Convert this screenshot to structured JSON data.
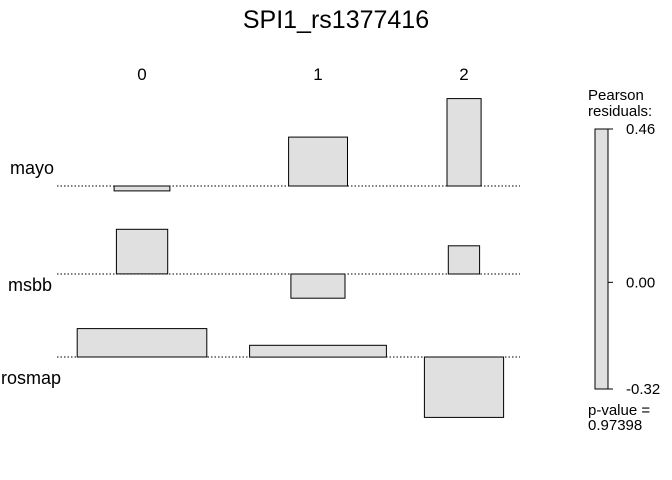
{
  "chart_data": {
    "type": "association",
    "title": "SPI1_rs1377416",
    "columns": [
      "0",
      "1",
      "2"
    ],
    "rows": [
      "mayo",
      "msbb",
      "rosmap"
    ],
    "column_widths": [
      0.45,
      0.475,
      0.275
    ],
    "row_heights": [
      0.37,
      0.34,
      0.86
    ],
    "residuals": [
      [
        -0.021,
        0.208,
        0.372
      ],
      [
        0.19,
        -0.103,
        0.12
      ],
      [
        0.121,
        0.05,
        -0.257
      ]
    ],
    "legend": {
      "title": "Pearson\nresiduals:",
      "max": 0.46,
      "mid": 0.0,
      "min": -0.32,
      "tick_labels": [
        "0.46",
        "0.00",
        "-0.32"
      ]
    },
    "p_value_label": "p-value =",
    "p_value": "0.97398"
  }
}
